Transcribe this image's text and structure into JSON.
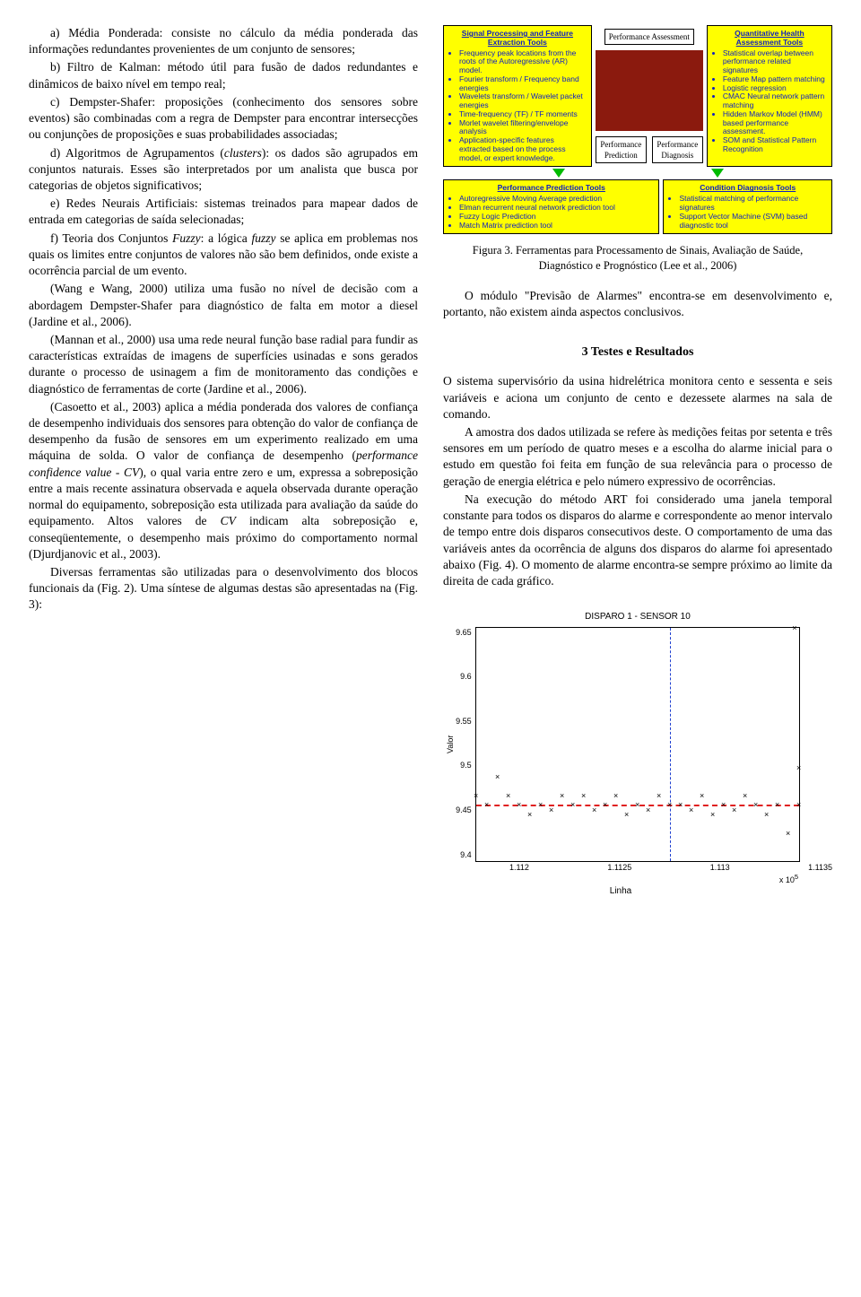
{
  "left": {
    "p1": "a) Média Ponderada: consiste no cálculo da média ponderada das informações redundantes provenientes de um conjunto de sensores;",
    "p2": "b) Filtro de Kalman: método útil para fusão de dados redundantes e dinâmicos de baixo nível em tempo real;",
    "p3": "c) Dempster-Shafer: proposições (conhecimento dos sensores sobre eventos) são combinadas com a regra de Dempster para encontrar intersecções ou conjunções de proposições e suas probabilidades associadas;",
    "p4a": "d) Algoritmos de Agrupamentos (",
    "p4i": "clusters",
    "p4b": "): os dados são agrupados em conjuntos naturais. Esses são interpretados por um analista que busca por categorias de objetos significativos;",
    "p5": "e) Redes Neurais Artificiais: sistemas treinados para mapear dados de entrada em categorias de saída selecionadas;",
    "p6a": "f) Teoria dos Conjuntos ",
    "p6i1": "Fuzzy",
    "p6b": ": a lógica ",
    "p6i2": "fuzzy",
    "p6c": " se aplica em problemas nos quais os limites entre conjuntos de valores não são bem definidos, onde existe a ocorrência parcial de um evento.",
    "p7": "(Wang e Wang, 2000) utiliza uma fusão no nível de decisão com a abordagem Dempster-Shafer para diagnóstico de falta em motor a diesel (Jardine et al., 2006).",
    "p8": "(Mannan et al., 2000) usa uma rede neural função base radial para fundir as características extraídas de imagens de superfícies usinadas e sons gerados durante o processo de usinagem a fim de monitoramento das condições e diagnóstico de ferramentas de corte (Jardine et al., 2006).",
    "p9a": "(Casoetto et al., 2003) aplica a média ponderada dos valores de confiança de desempenho individuais dos sensores para obtenção do valor de confiança de desempenho da fusão de sensores em um experimento realizado em uma máquina de solda. O valor de confiança de desempenho (",
    "p9i": "performance confidence value - CV",
    "p9b": "), o qual varia entre zero e um, expressa a sobreposição entre a mais recente assinatura observada e aquela observada durante operação normal do equipamento, sobreposição esta utilizada para avaliação da saúde do equipamento. Altos valores de ",
    "p9i2": "CV",
    "p9c": " indicam alta sobreposição e, conseqüentemente, o desempenho mais próximo do comportamento normal (Djurdjanovic et al., 2003).",
    "p10": "Diversas ferramentas são utilizadas para o desenvolvimento dos blocos funcionais da (Fig. 2). Uma síntese de algumas destas são apresentadas na (Fig. 3):"
  },
  "fig3": {
    "box_sig": {
      "title": "Signal Processing and Feature Extraction Tools",
      "items": [
        "Frequency peak locations from the roots of the Autoregressive (AR) model.",
        "Fourier transform / Frequency band energies",
        "Wavelets transform / Wavelet packet energies",
        "Time-frequency (TF) / TF moments",
        "Morlet wavelet filtering/envelope analysis",
        "Application-specific features extracted based on the process model, or expert knowledge."
      ]
    },
    "box_health": {
      "title": "Quantitative Health Assessment Tools",
      "items": [
        "Statistical overlap between performance related signatures",
        "Feature Map pattern matching",
        "Logistic regression",
        "CMAC Neural network pattern matching",
        "Hidden Markov Model (HMM) based performance assessment.",
        "SOM and Statistical Pattern Recognition"
      ]
    },
    "box_pred": {
      "title": "Performance Prediction Tools",
      "items": [
        "Autoregressive Moving Average prediction",
        "Elman recurrent neural network prediction tool",
        "Fuzzy Logic Prediction",
        "Match Matrix prediction tool"
      ]
    },
    "box_cond": {
      "title": "Condition Diagnosis Tools",
      "items": [
        "Statistical matching of performance signatures",
        "Support Vector Machine (SVM) based diagnostic tool"
      ]
    },
    "mid": {
      "assess": "Performance Assessment",
      "pred": "Performance Prediction",
      "diag": "Performance Diagnosis"
    },
    "caption": "Figura 3. Ferramentas para Processamento de Sinais, Avaliação de Saúde, Diagnóstico e Prognóstico (Lee et al., 2006)"
  },
  "right": {
    "p1": "O módulo \"Previsão de Alarmes\" encontra-se em desenvolvimento e, portanto, não existem ainda aspectos conclusivos.",
    "sec": "3   Testes e Resultados",
    "p2": "O sistema supervisório da usina hidrelétrica monitora cento e sessenta e seis variáveis e aciona um conjunto de cento e dezessete alarmes na sala de comando.",
    "p3": "A amostra dos dados utilizada se refere às medições feitas por setenta e três sensores em um período de quatro meses e a escolha do alarme inicial para o estudo em questão foi feita em função de sua relevância para o processo de geração de energia elétrica e pelo número expressivo de ocorrências.",
    "p4": "Na execução do método ART foi considerado uma janela temporal constante para todos os disparos do alarme e correspondente ao menor intervalo de tempo entre dois disparos consecutivos deste. O comportamento de uma das variáveis antes da ocorrência de alguns dos disparos do alarme foi apresentado abaixo (Fig. 4). O momento de alarme encontra-se sempre próximo ao limite da direita de cada gráfico."
  },
  "chart": {
    "title": "DISPARO 1 - SENSOR 10",
    "ylabel": "Valor",
    "xlabel": "Linha",
    "ylim": [
      9.4,
      9.65
    ],
    "yticks": [
      "9.65",
      "9.6",
      "9.55",
      "9.5",
      "9.45",
      "9.4"
    ],
    "xlim": [
      1.112,
      1.1135
    ],
    "xticks": [
      "1.112",
      "1.1125",
      "1.113",
      "1.1135"
    ],
    "xunit": "x 10",
    "xunit_sup": "5",
    "vline_x": 1.1129,
    "red_y": 9.46,
    "line_color": "#2040d0",
    "red_color": "#e02020",
    "points": [
      {
        "x": 1.112,
        "y": 9.47
      },
      {
        "x": 1.11205,
        "y": 9.46
      },
      {
        "x": 1.1121,
        "y": 9.49
      },
      {
        "x": 1.11215,
        "y": 9.47
      },
      {
        "x": 1.1122,
        "y": 9.46
      },
      {
        "x": 1.11225,
        "y": 9.45
      },
      {
        "x": 1.1123,
        "y": 9.46
      },
      {
        "x": 1.11235,
        "y": 9.455
      },
      {
        "x": 1.1124,
        "y": 9.47
      },
      {
        "x": 1.11245,
        "y": 9.46
      },
      {
        "x": 1.1125,
        "y": 9.47
      },
      {
        "x": 1.11255,
        "y": 9.455
      },
      {
        "x": 1.1126,
        "y": 9.46
      },
      {
        "x": 1.11265,
        "y": 9.47
      },
      {
        "x": 1.1127,
        "y": 9.45
      },
      {
        "x": 1.11275,
        "y": 9.46
      },
      {
        "x": 1.1128,
        "y": 9.455
      },
      {
        "x": 1.11285,
        "y": 9.47
      },
      {
        "x": 1.1129,
        "y": 9.46
      },
      {
        "x": 1.11295,
        "y": 9.46
      },
      {
        "x": 1.113,
        "y": 9.455
      },
      {
        "x": 1.11305,
        "y": 9.47
      },
      {
        "x": 1.1131,
        "y": 9.45
      },
      {
        "x": 1.11315,
        "y": 9.46
      },
      {
        "x": 1.1132,
        "y": 9.455
      },
      {
        "x": 1.11325,
        "y": 9.47
      },
      {
        "x": 1.1133,
        "y": 9.46
      },
      {
        "x": 1.11335,
        "y": 9.45
      },
      {
        "x": 1.1134,
        "y": 9.46
      },
      {
        "x": 1.11345,
        "y": 9.43
      },
      {
        "x": 1.1135,
        "y": 9.46
      },
      {
        "x": 1.11348,
        "y": 9.65
      },
      {
        "x": 1.1135,
        "y": 9.5
      }
    ]
  }
}
